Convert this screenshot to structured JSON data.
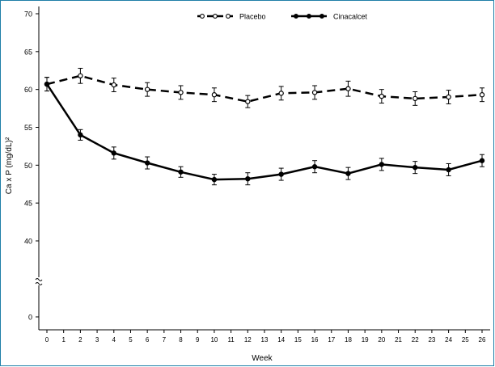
{
  "chart_data": {
    "type": "line",
    "title": "",
    "xlabel": "Week",
    "ylabel": "Ca x P (mg/dL)²",
    "x": [
      0,
      2,
      4,
      6,
      8,
      10,
      12,
      14,
      16,
      18,
      20,
      22,
      24,
      26
    ],
    "x_ticks": [
      0,
      1,
      2,
      3,
      4,
      5,
      6,
      7,
      8,
      9,
      10,
      11,
      12,
      13,
      14,
      15,
      16,
      17,
      18,
      19,
      20,
      21,
      22,
      23,
      24,
      25,
      26
    ],
    "xlim": [
      0,
      26
    ],
    "y_ticks": [
      0,
      40,
      45,
      50,
      55,
      60,
      65,
      70
    ],
    "ylim": [
      0,
      70
    ],
    "y_axis_break": true,
    "grid": false,
    "legend_position": "top-center",
    "series": [
      {
        "name": "Placebo",
        "line_style": "dashed",
        "marker": "open-circle",
        "color": "#000000",
        "values": [
          60.7,
          61.8,
          60.6,
          60.0,
          59.6,
          59.3,
          58.4,
          59.5,
          59.6,
          60.1,
          59.1,
          58.8,
          59.0,
          59.3
        ],
        "error": [
          0.9,
          1.0,
          0.9,
          0.9,
          0.9,
          0.9,
          0.8,
          0.9,
          0.9,
          1.0,
          0.9,
          0.9,
          0.9,
          0.9
        ]
      },
      {
        "name": "Cinacalcet",
        "line_style": "solid",
        "marker": "filled-circle",
        "color": "#000000",
        "values": [
          60.7,
          54.0,
          51.6,
          50.3,
          49.1,
          48.1,
          48.2,
          48.8,
          49.8,
          48.9,
          50.1,
          49.7,
          49.4,
          50.6
        ],
        "error": [
          0.9,
          0.7,
          0.8,
          0.8,
          0.7,
          0.7,
          0.8,
          0.8,
          0.8,
          0.8,
          0.8,
          0.8,
          0.8,
          0.8
        ]
      }
    ]
  }
}
